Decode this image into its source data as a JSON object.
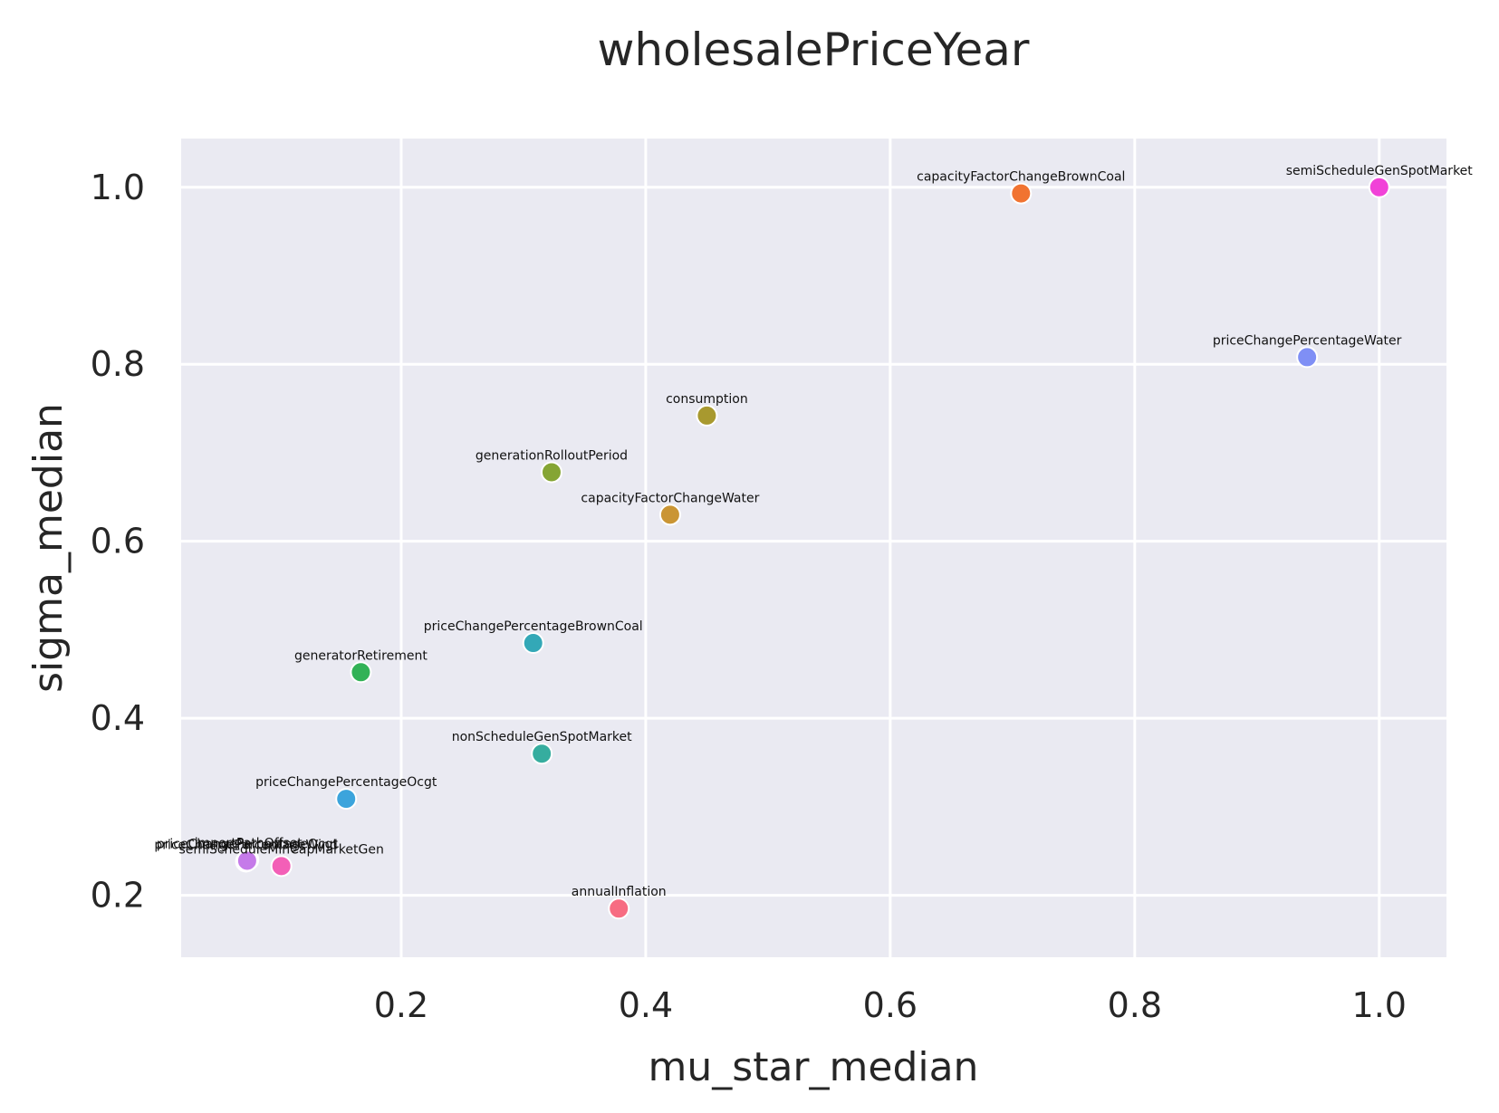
{
  "chart_data": {
    "type": "scatter",
    "title": "wholesalePriceYear",
    "xlabel": "mu_star_median",
    "ylabel": "sigma_median",
    "xlim": [
      0.02,
      1.055
    ],
    "ylim": [
      0.13,
      1.055
    ],
    "x_ticks": [
      0.2,
      0.4,
      0.6,
      0.8,
      1.0
    ],
    "y_ticks": [
      0.2,
      0.4,
      0.6,
      0.8,
      1.0
    ],
    "x_tick_labels": [
      "0.2",
      "0.4",
      "0.6",
      "0.8",
      "1.0"
    ],
    "y_tick_labels": [
      "0.2",
      "0.4",
      "0.6",
      "0.8",
      "1.0"
    ],
    "grid": true,
    "background_color": "#eaeaf2",
    "points": [
      {
        "label": "semiScheduleGenSpotMarket",
        "x": 1.0,
        "y": 1.0,
        "color": "#f142d8"
      },
      {
        "label": "capacityFactorChangeBrownCoal",
        "x": 0.707,
        "y": 0.993,
        "color": "#f17331"
      },
      {
        "label": "priceChangePercentageWater",
        "x": 0.941,
        "y": 0.808,
        "color": "#7f8ff5"
      },
      {
        "label": "consumption",
        "x": 0.45,
        "y": 0.742,
        "color": "#a8992f"
      },
      {
        "label": "generationRolloutPeriod",
        "x": 0.323,
        "y": 0.678,
        "color": "#85a534"
      },
      {
        "label": "capacityFactorChangeWater",
        "x": 0.42,
        "y": 0.63,
        "color": "#ca9534"
      },
      {
        "label": "priceChangePercentageBrownCoal",
        "x": 0.308,
        "y": 0.485,
        "color": "#33a8b7"
      },
      {
        "label": "generatorRetirement",
        "x": 0.167,
        "y": 0.452,
        "color": "#32b256"
      },
      {
        "label": "nonScheduleGenSpotMarket",
        "x": 0.315,
        "y": 0.36,
        "color": "#36ad9f"
      },
      {
        "label": "priceChangePercentageOcgt",
        "x": 0.155,
        "y": 0.309,
        "color": "#3ca4dc"
      },
      {
        "label": "importPathOffset",
        "x": 0.075,
        "y": 0.24,
        "color": "#9aa7e8"
      },
      {
        "label": "priceChangePercentageWind",
        "x": 0.073,
        "y": 0.238,
        "color": "#a390f0"
      },
      {
        "label": "priceChangePercentageOcgt",
        "x": 0.074,
        "y": 0.239,
        "color": "#c57ae9"
      },
      {
        "label": "semiScheduleMinCapMarketGen",
        "x": 0.102,
        "y": 0.233,
        "color": "#f35fb7"
      },
      {
        "label": "annualInflation",
        "x": 0.378,
        "y": 0.185,
        "color": "#f76c82"
      }
    ]
  }
}
